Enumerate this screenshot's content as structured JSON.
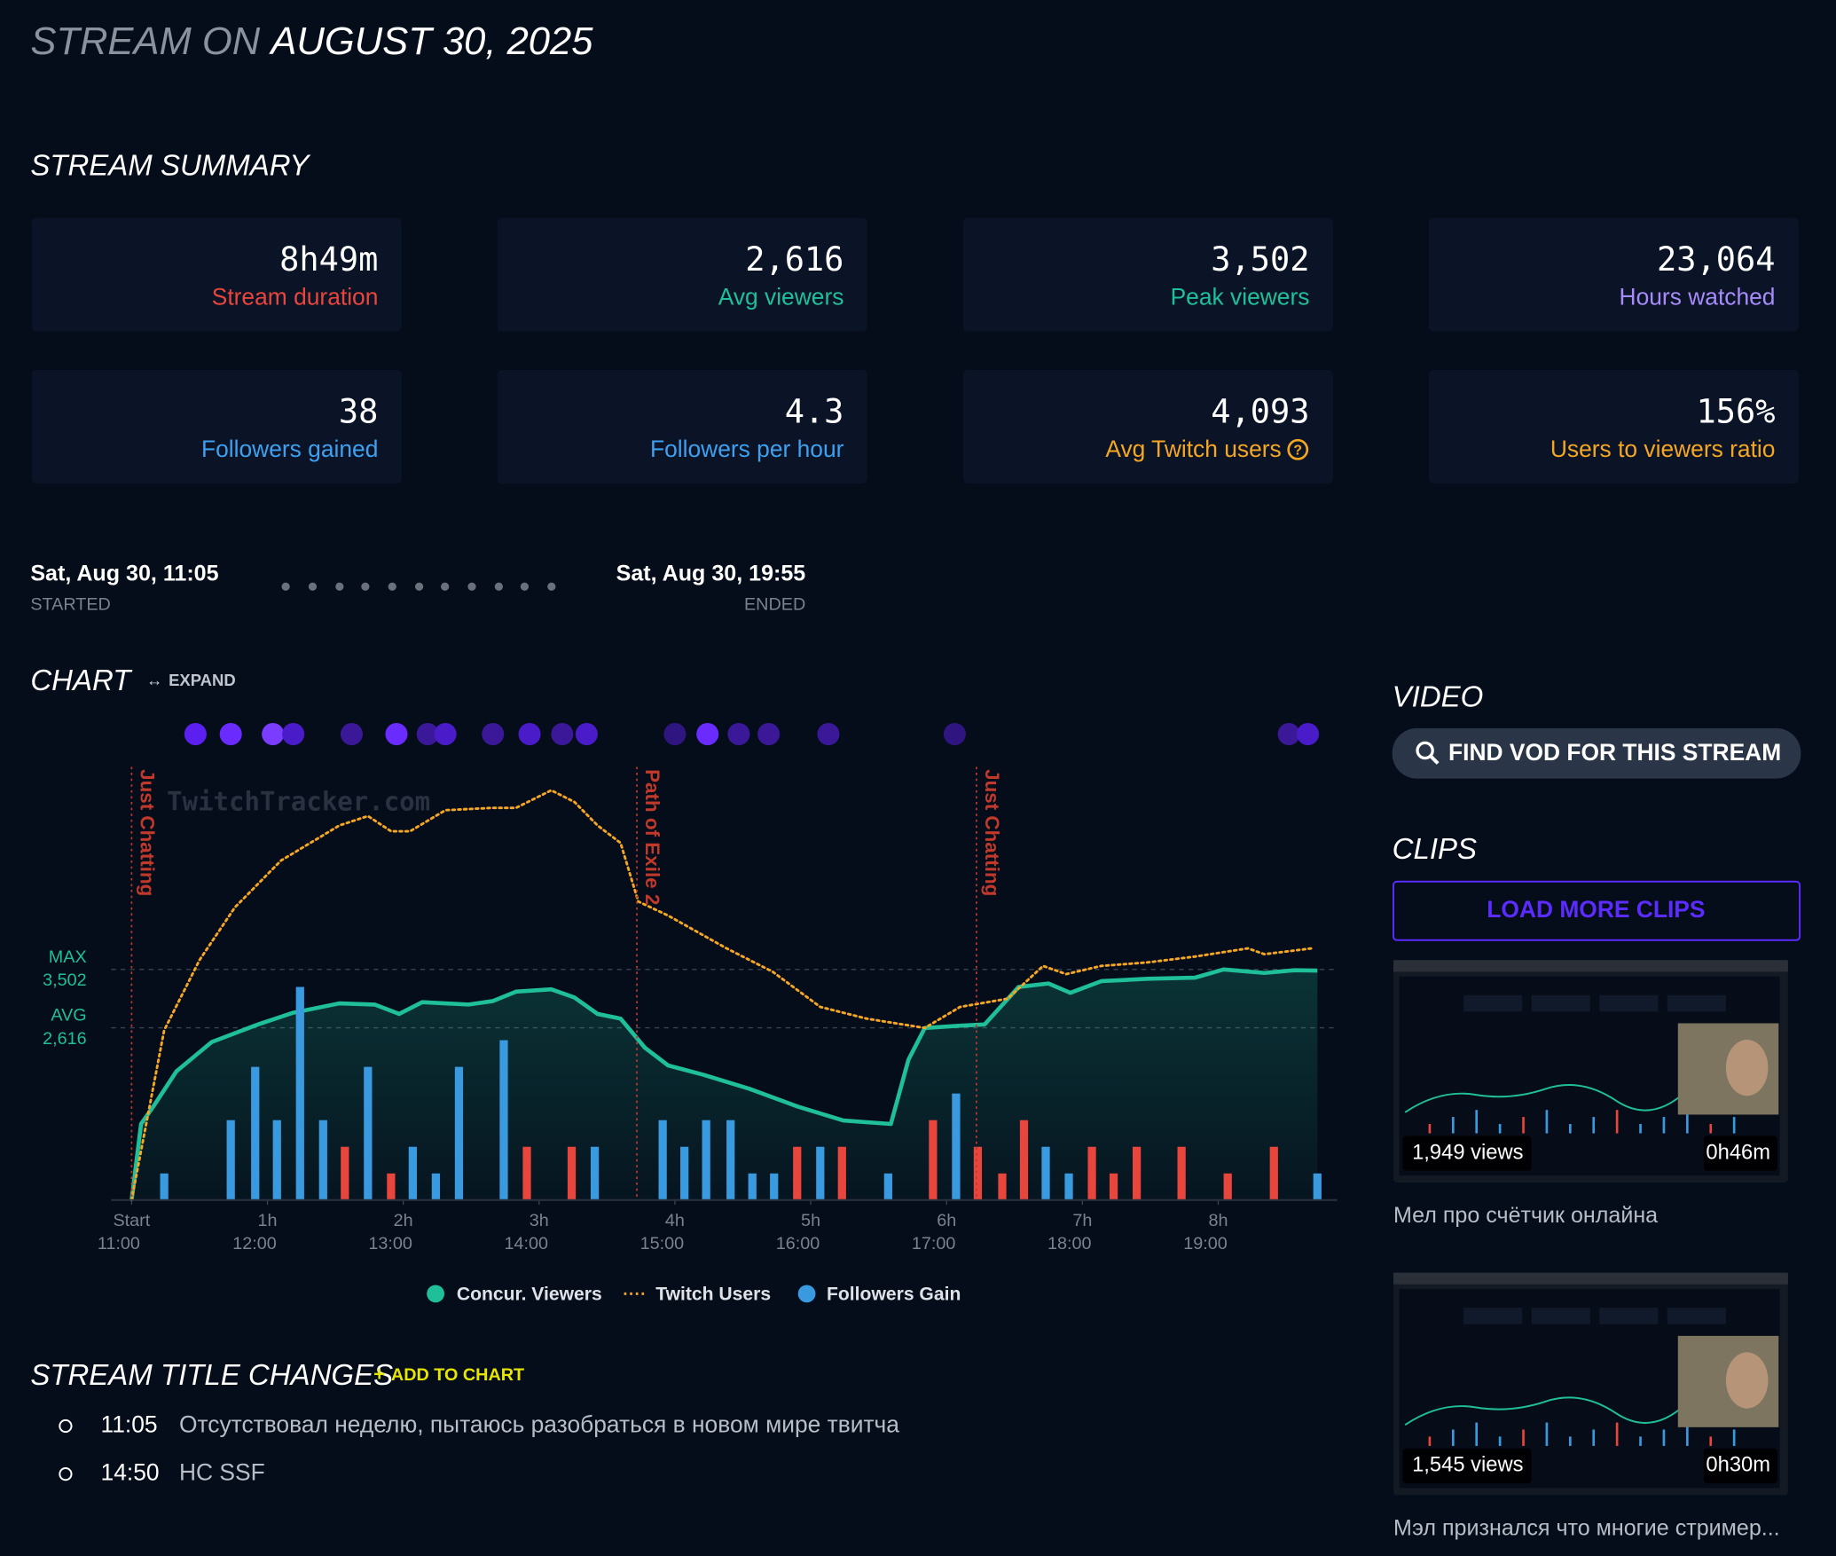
{
  "header": {
    "prefix": "STREAM ON",
    "date": "AUGUST 30, 2025"
  },
  "summary": {
    "title": "STREAM SUMMARY",
    "stats": [
      {
        "value": "8h49m",
        "label": "Stream duration",
        "color": "#e8453c"
      },
      {
        "value": "2,616",
        "label": "Avg viewers",
        "color": "#1fbf9a"
      },
      {
        "value": "3,502",
        "label": "Peak viewers",
        "color": "#1fbf9a"
      },
      {
        "value": "23,064",
        "label": "Hours watched",
        "color": "#a78bfa"
      },
      {
        "value": "38",
        "label": "Followers gained",
        "color": "#3ea0f0"
      },
      {
        "value": "4.3",
        "label": "Followers per hour",
        "color": "#3ea0f0"
      },
      {
        "value": "4,093",
        "label": "Avg Twitch users",
        "color": "#f5a623"
      },
      {
        "value": "156%",
        "label": "Users to viewers ratio",
        "color": "#f5a623"
      }
    ]
  },
  "timeline": {
    "start": "Sat, Aug 30, 11:05",
    "start_label": "STARTED",
    "end": "Sat, Aug 30, 19:55",
    "end_label": "ENDED"
  },
  "chart_section": {
    "title": "CHART",
    "expand": "EXPAND"
  },
  "chart_data": {
    "type": "line",
    "watermark": "TwitchTracker.com",
    "xlim": [
      -0.15,
      8.85
    ],
    "ylim": [
      0,
      6578
    ],
    "y2lim": [
      0,
      8.13
    ],
    "xticks": [
      {
        "value": 0,
        "label": "Start",
        "time": "11:00"
      },
      {
        "value": 1,
        "label": "1h",
        "time": "12:00"
      },
      {
        "value": 2,
        "label": "2h",
        "time": "13:00"
      },
      {
        "value": 3,
        "label": "3h",
        "time": "14:00"
      },
      {
        "value": 4,
        "label": "4h",
        "time": "15:00"
      },
      {
        "value": 5,
        "label": "5h",
        "time": "16:00"
      },
      {
        "value": 6,
        "label": "6h",
        "time": "17:00"
      },
      {
        "value": 7,
        "label": "7h",
        "time": "18:00"
      },
      {
        "value": 8,
        "label": "8h",
        "time": "19:00"
      }
    ],
    "yticks": [
      {
        "value": 3502,
        "label": "3,502",
        "name": "MAX"
      },
      {
        "value": 2616,
        "label": "2,616",
        "name": "AVG"
      }
    ],
    "annotations": [
      {
        "x": 0,
        "label": "Just Chatting"
      },
      {
        "x": 3.72,
        "label": "Path of Exile 2"
      },
      {
        "x": 6.22,
        "label": "Just Chatting"
      }
    ],
    "annotation_color": "#c0392b",
    "events_x": [
      0.47,
      0.73,
      1.04,
      1.19,
      1.62,
      1.95,
      2.18,
      2.31,
      2.66,
      2.93,
      3.17,
      3.35,
      4.0,
      4.24,
      4.47,
      4.69,
      5.13,
      6.06,
      8.52,
      8.66
    ],
    "event_colors": [
      "#5b1ff0",
      "#6a2bff",
      "#7a3cff",
      "#4a1bc8",
      "#3a1898",
      "#6a2bff",
      "#3a1898",
      "#4a1bc8",
      "#3a1898",
      "#4a1bc8",
      "#3a1898",
      "#4a1bc8",
      "#2f1580",
      "#6a2bff",
      "#3a1898",
      "#3a1898",
      "#3a1898",
      "#2f1580",
      "#3a1898",
      "#4a1bc8"
    ],
    "series": [
      {
        "name": "Concur. Viewers",
        "color": "#1fbf9a",
        "style": "solid",
        "x": [
          0,
          0.07,
          0.16,
          0.33,
          0.59,
          0.93,
          1.19,
          1.53,
          1.79,
          1.97,
          2.14,
          2.48,
          2.66,
          2.83,
          3.09,
          3.26,
          3.43,
          3.6,
          3.78,
          3.95,
          4.21,
          4.55,
          4.9,
          5.24,
          5.59,
          5.72,
          5.84,
          6.1,
          6.28,
          6.53,
          6.75,
          6.91,
          7.14,
          7.48,
          7.83,
          8.04,
          8.34,
          8.56,
          8.73
        ],
        "values": [
          0,
          1156,
          1422,
          1956,
          2400,
          2667,
          2844,
          2987,
          2969,
          2827,
          3004,
          2969,
          3022,
          3164,
          3200,
          3076,
          2827,
          2756,
          2311,
          2044,
          1902,
          1689,
          1422,
          1209,
          1156,
          2133,
          2613,
          2649,
          2667,
          3236,
          3289,
          3147,
          3324,
          3360,
          3378,
          3502,
          3449,
          3490,
          3484
        ]
      },
      {
        "name": "Twitch Users",
        "color": "#f5a623",
        "style": "dotted",
        "x": [
          0,
          0.24,
          0.5,
          0.76,
          1.1,
          1.53,
          1.74,
          1.91,
          2.05,
          2.31,
          2.66,
          2.83,
          3.09,
          3.26,
          3.43,
          3.6,
          3.73,
          3.95,
          4.38,
          4.72,
          5.07,
          5.41,
          5.84,
          6.1,
          6.45,
          6.71,
          6.88,
          7.14,
          7.48,
          7.83,
          8.22,
          8.34,
          8.69
        ],
        "values": [
          0,
          2578,
          3644,
          4444,
          5156,
          5689,
          5831,
          5600,
          5600,
          5920,
          5956,
          5956,
          6222,
          6044,
          5689,
          5422,
          4533,
          4320,
          3822,
          3467,
          2933,
          2756,
          2613,
          2933,
          3058,
          3556,
          3431,
          3556,
          3609,
          3698,
          3822,
          3733,
          3822
        ]
      },
      {
        "name": "Followers Gain",
        "color": "#3a9ae0",
        "type": "bar",
        "axis": "y2",
        "x": [
          0.24,
          0.73,
          0.91,
          1.07,
          1.24,
          1.41,
          1.57,
          1.74,
          1.91,
          2.07,
          2.24,
          2.41,
          2.74,
          2.91,
          3.24,
          3.41,
          3.91,
          4.07,
          4.23,
          4.41,
          4.57,
          4.73,
          4.9,
          5.07,
          5.23,
          5.57,
          5.9,
          6.07,
          6.23,
          6.41,
          6.57,
          6.73,
          6.9,
          7.07,
          7.23,
          7.4,
          7.73,
          8.07,
          8.41,
          8.73
        ],
        "values": [
          0.5,
          1.5,
          2.5,
          1.5,
          4,
          1.5,
          1,
          2.5,
          0.5,
          1,
          0.5,
          2.5,
          3,
          1,
          1,
          1,
          1.5,
          1,
          1.5,
          1.5,
          0.5,
          0.5,
          1,
          1,
          1,
          0.5,
          1.5,
          2,
          1,
          0.5,
          1.5,
          1,
          0.5,
          1,
          0.5,
          1,
          1,
          0.5,
          1,
          0.5
        ],
        "colors": [
          "#3a9ae0",
          "#3a9ae0",
          "#3a9ae0",
          "#3a9ae0",
          "#3a9ae0",
          "#3a9ae0",
          "#e8453c",
          "#3a9ae0",
          "#e8453c",
          "#3a9ae0",
          "#3a9ae0",
          "#3a9ae0",
          "#3a9ae0",
          "#e8453c",
          "#e8453c",
          "#3a9ae0",
          "#3a9ae0",
          "#3a9ae0",
          "#3a9ae0",
          "#3a9ae0",
          "#3a9ae0",
          "#3a9ae0",
          "#e8453c",
          "#3a9ae0",
          "#e8453c",
          "#3a9ae0",
          "#e8453c",
          "#3a9ae0",
          "#e8453c",
          "#e8453c",
          "#e8453c",
          "#3a9ae0",
          "#3a9ae0",
          "#e8453c",
          "#e8453c",
          "#e8453c",
          "#e8453c",
          "#e8453c",
          "#e8453c",
          "#3a9ae0"
        ]
      }
    ]
  },
  "video": {
    "title": "VIDEO",
    "button": "FIND VOD FOR THIS STREAM"
  },
  "clips": {
    "title": "CLIPS",
    "button": "LOAD MORE CLIPS",
    "items": [
      {
        "views": "1,949 views",
        "duration": "0h46m",
        "title": "Мел про счётчик онлайна"
      },
      {
        "views": "1,545 views",
        "duration": "0h30m",
        "title": "Мэл признался что многие стример..."
      }
    ]
  },
  "title_changes": {
    "title": "STREAM TITLE CHANGES",
    "add": "ADD TO CHART",
    "items": [
      {
        "time": "11:05",
        "text": "Отсутствовал неделю, пытаюсь разобраться в новом мире твитча"
      },
      {
        "time": "14:50",
        "text": "HC SSF"
      }
    ]
  }
}
